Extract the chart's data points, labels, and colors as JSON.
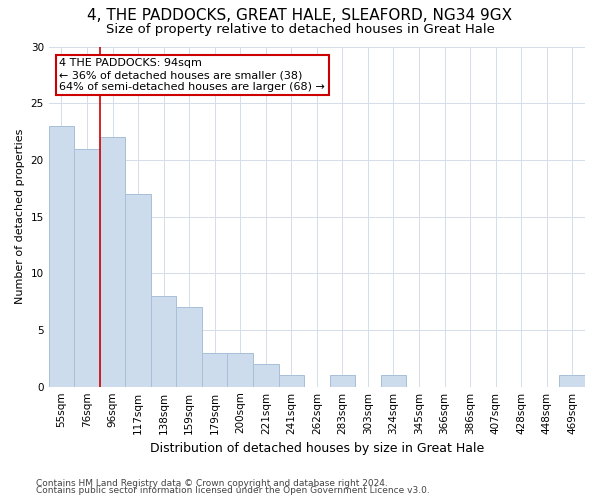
{
  "title1": "4, THE PADDOCKS, GREAT HALE, SLEAFORD, NG34 9GX",
  "title2": "Size of property relative to detached houses in Great Hale",
  "xlabel": "Distribution of detached houses by size in Great Hale",
  "ylabel": "Number of detached properties",
  "categories": [
    "55sqm",
    "76sqm",
    "96sqm",
    "117sqm",
    "138sqm",
    "159sqm",
    "179sqm",
    "200sqm",
    "221sqm",
    "241sqm",
    "262sqm",
    "283sqm",
    "303sqm",
    "324sqm",
    "345sqm",
    "366sqm",
    "386sqm",
    "407sqm",
    "428sqm",
    "448sqm",
    "469sqm"
  ],
  "values": [
    23,
    21,
    22,
    17,
    8,
    7,
    3,
    3,
    2,
    1,
    0,
    1,
    0,
    1,
    0,
    0,
    0,
    0,
    0,
    0,
    1
  ],
  "bar_color": "#ccdcec",
  "bar_edge_color": "#a8c0d8",
  "marker_line_index": 2,
  "marker_line_color": "#cc0000",
  "annotation_line1": "4 THE PADDOCKS: 94sqm",
  "annotation_line2": "← 36% of detached houses are smaller (38)",
  "annotation_line3": "64% of semi-detached houses are larger (68) →",
  "annotation_box_color": "#ffffff",
  "annotation_box_edge": "#cc0000",
  "ylim": [
    0,
    30
  ],
  "yticks": [
    0,
    5,
    10,
    15,
    20,
    25,
    30
  ],
  "footnote1": "Contains HM Land Registry data © Crown copyright and database right 2024.",
  "footnote2": "Contains public sector information licensed under the Open Government Licence v3.0.",
  "background_color": "#ffffff",
  "grid_color": "#d4dce8",
  "title1_fontsize": 11,
  "title2_fontsize": 9.5,
  "ylabel_fontsize": 8,
  "xlabel_fontsize": 9,
  "tick_fontsize": 7.5,
  "ann_fontsize": 8,
  "footnote_fontsize": 6.5
}
